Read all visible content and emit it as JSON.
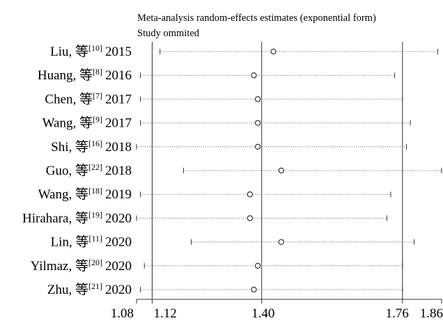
{
  "chart_data": {
    "type": "forest",
    "title": "Meta-analysis random-effects estimates (exponential form)",
    "subtitle": "Study ommited",
    "x_ticks": [
      1.08,
      1.12,
      1.4,
      1.76,
      1.86
    ],
    "x_tick_labels": [
      "1.08",
      "1.12",
      "1.40",
      "1.76",
      "1.86"
    ],
    "xlim": [
      1.08,
      1.86
    ],
    "reference_lines": [
      1.12,
      1.4,
      1.76
    ],
    "studies": [
      {
        "author": "Liu, 等",
        "ref": "[10]",
        "year": "2015",
        "estimate": 1.43,
        "lower": 1.14,
        "upper": 1.85
      },
      {
        "author": "Huang, 等",
        "ref": "[8]",
        "year": "2016",
        "estimate": 1.38,
        "lower": 1.09,
        "upper": 1.74
      },
      {
        "author": "Chen, 等",
        "ref": "[7]",
        "year": "2017",
        "estimate": 1.39,
        "lower": 1.09,
        "upper": 1.76
      },
      {
        "author": "Wang, 等",
        "ref": "[9]",
        "year": "2017",
        "estimate": 1.39,
        "lower": 1.09,
        "upper": 1.78
      },
      {
        "author": "Shi, 等",
        "ref": "[16]",
        "year": "2018",
        "estimate": 1.39,
        "lower": 1.08,
        "upper": 1.77
      },
      {
        "author": "Guo, 等",
        "ref": "[22]",
        "year": "2018",
        "estimate": 1.45,
        "lower": 1.2,
        "upper": 1.86
      },
      {
        "author": "Wang, 等",
        "ref": "[18]",
        "year": "2019",
        "estimate": 1.37,
        "lower": 1.09,
        "upper": 1.73
      },
      {
        "author": "Hirahara, 等",
        "ref": "[19]",
        "year": "2020",
        "estimate": 1.37,
        "lower": 1.08,
        "upper": 1.72
      },
      {
        "author": "Lin, 等",
        "ref": "[11]",
        "year": "2020",
        "estimate": 1.45,
        "lower": 1.22,
        "upper": 1.79
      },
      {
        "author": "Yilmaz, 等",
        "ref": "[20]",
        "year": "2020",
        "estimate": 1.39,
        "lower": 1.1,
        "upper": 1.76
      },
      {
        "author": "Zhu, 等",
        "ref": "[21]",
        "year": "2020",
        "estimate": 1.38,
        "lower": 1.09,
        "upper": 1.76
      }
    ]
  }
}
